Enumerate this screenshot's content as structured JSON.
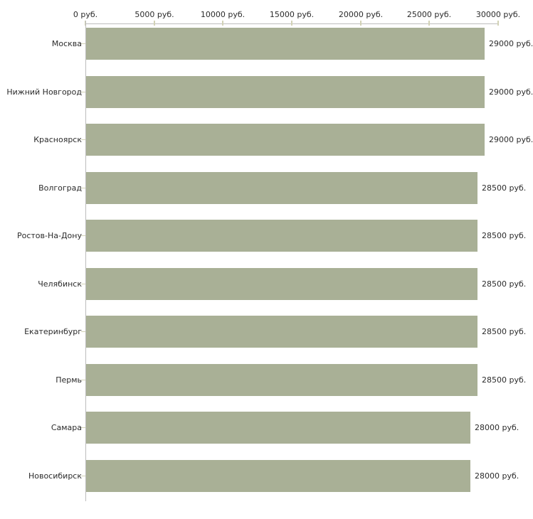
{
  "chart_data": {
    "type": "bar",
    "orientation": "horizontal",
    "title": "",
    "xlabel": "",
    "ylabel": "",
    "categories": [
      "Москва",
      "Нижний Новгород",
      "Красноярск",
      "Волгоград",
      "Ростов-На-Дону",
      "Челябинск",
      "Екатеринбург",
      "Пермь",
      "Самара",
      "Новосибирск"
    ],
    "values": [
      29000,
      29000,
      29000,
      28500,
      28500,
      28500,
      28500,
      28500,
      28000,
      28000
    ],
    "value_labels": [
      "29000 руб.",
      "29000 руб.",
      "29000 руб.",
      "28500 руб.",
      "28500 руб.",
      "28500 руб.",
      "28500 руб.",
      "28500 руб.",
      "28000 руб.",
      "28000 руб."
    ],
    "x_tick_values": [
      0,
      5000,
      10000,
      15000,
      20000,
      25000,
      30000
    ],
    "x_tick_labels": [
      "0 руб.",
      "5000 руб.",
      "10000 руб.",
      "15000 руб.",
      "20000 руб.",
      "25000 руб.",
      "30000 руб."
    ],
    "xlim": [
      0,
      30000
    ],
    "grid": false,
    "legend": "none",
    "colors": {
      "bar": "#a9b096",
      "axis_line": "#bdbdbd",
      "tick_mark": "#d2d2b6",
      "text": "#2b2b2b",
      "background": "#ffffff"
    }
  }
}
